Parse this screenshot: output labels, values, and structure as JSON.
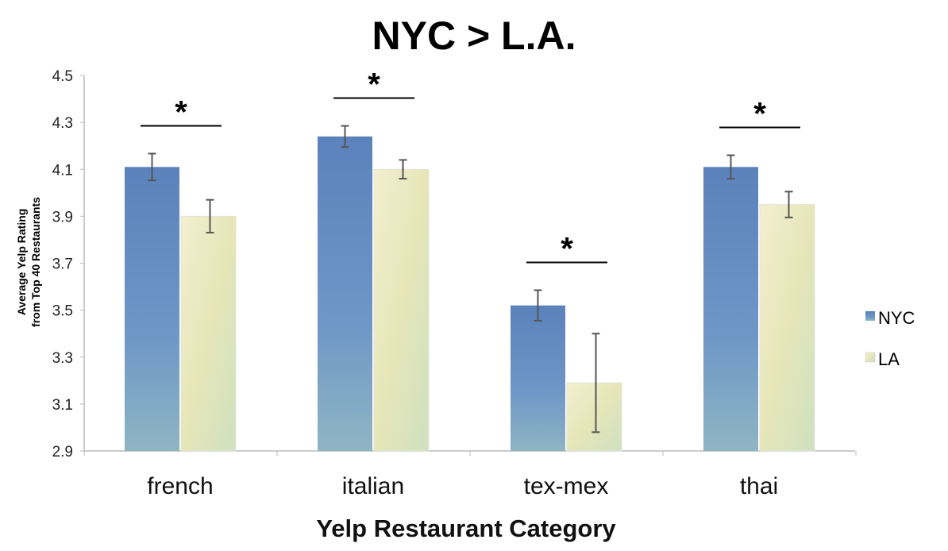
{
  "chart_data": {
    "type": "bar",
    "title": "NYC > L.A.",
    "xlabel": "Yelp Restaurant Category",
    "ylabel": [
      "Average Yelp Rating",
      "from Top 40 Restaurants"
    ],
    "ylim": [
      2.9,
      4.5
    ],
    "yticks": [
      "2.9",
      "3.1",
      "3.3",
      "3.5",
      "3.7",
      "3.9",
      "4.1",
      "4.3",
      "4.5"
    ],
    "grid": false,
    "legend_position": "right",
    "categories": [
      "french",
      "italian",
      "tex-mex",
      "thai"
    ],
    "series": [
      {
        "name": "NYC",
        "color": "#5f86bd",
        "values": [
          4.11,
          4.24,
          3.52,
          4.11
        ],
        "errors": [
          0.057,
          0.045,
          0.065,
          0.05
        ]
      },
      {
        "name": "LA",
        "color": "#e8e8c4",
        "values": [
          3.9,
          4.1,
          3.19,
          3.95
        ],
        "errors": [
          0.07,
          0.04,
          0.21,
          0.055
        ]
      }
    ],
    "significance_marker": "*",
    "significant": [
      true,
      true,
      true,
      true
    ]
  }
}
